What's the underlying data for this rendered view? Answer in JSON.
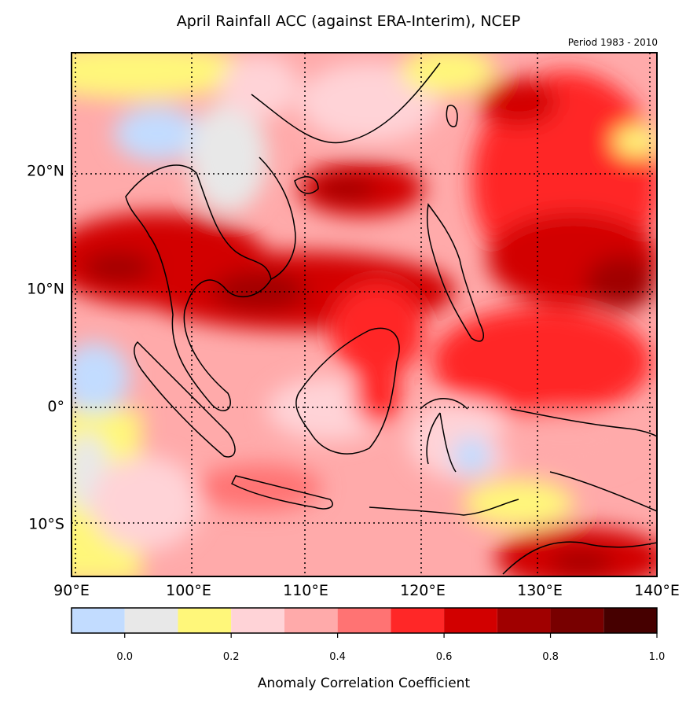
{
  "title": "April Rainfall ACC (against ERA-Interim), NCEP",
  "subtitle": "Period 1983 - 2010",
  "map": {
    "lon_range": [
      90,
      140
    ],
    "lat_range": [
      -14.5,
      30
    ],
    "x_ticks": [
      {
        "value": 90,
        "label": "90°E"
      },
      {
        "value": 100,
        "label": "100°E"
      },
      {
        "value": 110,
        "label": "110°E"
      },
      {
        "value": 120,
        "label": "120°E"
      },
      {
        "value": 130,
        "label": "130°E"
      },
      {
        "value": 140,
        "label": "140°E"
      }
    ],
    "y_ticks": [
      {
        "value": 20,
        "label": "20°N"
      },
      {
        "value": 10,
        "label": "10°N"
      },
      {
        "value": 0,
        "label": "0°"
      },
      {
        "value": -10,
        "label": "10°S"
      }
    ],
    "gridlines": "dotted"
  },
  "colorbar": {
    "label": "Anomaly Correlation Coefficient",
    "colors": [
      "#c2dcff",
      "#e8e8e8",
      "#fff77a",
      "#ffd3d7",
      "#ffaaaa",
      "#ff7373",
      "#ff2727",
      "#d20000",
      "#a00000",
      "#780000",
      "#460000"
    ],
    "boundaries": [
      -0.1,
      0.0,
      0.1,
      0.2,
      0.3,
      0.4,
      0.5,
      0.6,
      0.7,
      0.8,
      0.9,
      1.0
    ],
    "ticks": [
      {
        "value": 0.0,
        "label": "0.0"
      },
      {
        "value": 0.2,
        "label": "0.2"
      },
      {
        "value": 0.4,
        "label": "0.4"
      },
      {
        "value": 0.6,
        "label": "0.6"
      },
      {
        "value": 0.8,
        "label": "0.8"
      },
      {
        "value": 1.0,
        "label": "1.0"
      }
    ]
  }
}
